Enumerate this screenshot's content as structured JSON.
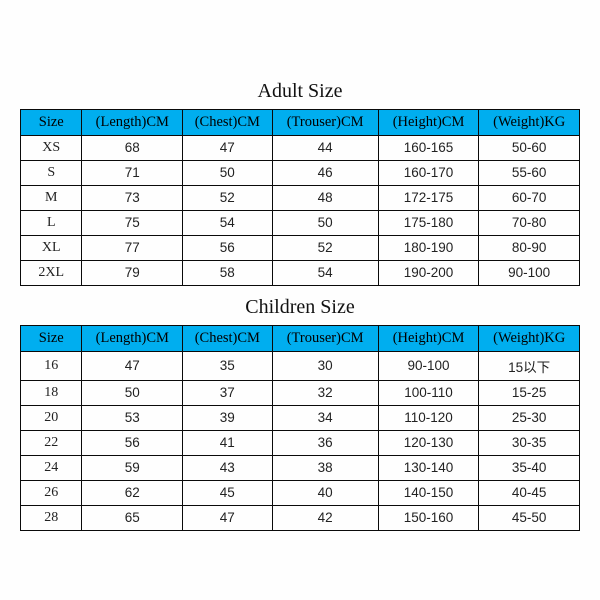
{
  "adult": {
    "title": "Adult Size",
    "columns": [
      "Size",
      "(Length)CM",
      "(Chest)CM",
      "(Trouser)CM",
      "(Height)CM",
      "(Weight)KG"
    ],
    "rows": [
      [
        "XS",
        "68",
        "47",
        "44",
        "160-165",
        "50-60"
      ],
      [
        "S",
        "71",
        "50",
        "46",
        "160-170",
        "55-60"
      ],
      [
        "M",
        "73",
        "52",
        "48",
        "172-175",
        "60-70"
      ],
      [
        "L",
        "75",
        "54",
        "50",
        "175-180",
        "70-80"
      ],
      [
        "XL",
        "77",
        "56",
        "52",
        "180-190",
        "80-90"
      ],
      [
        "2XL",
        "79",
        "58",
        "54",
        "190-200",
        "90-100"
      ]
    ]
  },
  "children": {
    "title": "Children Size",
    "columns": [
      "Size",
      "(Length)CM",
      "(Chest)CM",
      "(Trouser)CM",
      "(Height)CM",
      "(Weight)KG"
    ],
    "rows": [
      [
        "16",
        "47",
        "35",
        "30",
        "90-100",
        "15以下"
      ],
      [
        "18",
        "50",
        "37",
        "32",
        "100-110",
        "15-25"
      ],
      [
        "20",
        "53",
        "39",
        "34",
        "110-120",
        "25-30"
      ],
      [
        "22",
        "56",
        "41",
        "36",
        "120-130",
        "30-35"
      ],
      [
        "24",
        "59",
        "43",
        "38",
        "130-140",
        "35-40"
      ],
      [
        "26",
        "62",
        "45",
        "40",
        "140-150",
        "40-45"
      ],
      [
        "28",
        "65",
        "47",
        "42",
        "150-160",
        "45-50"
      ]
    ]
  },
  "colors": {
    "header_bg": "#00aeef",
    "border": "#0a0a0a",
    "text": "#111",
    "bg": "#fefefe"
  },
  "fonts": {
    "title_family": "Times New Roman",
    "title_size_pt": 15,
    "header_size_pt": 11,
    "cell_size_pt": 10
  }
}
